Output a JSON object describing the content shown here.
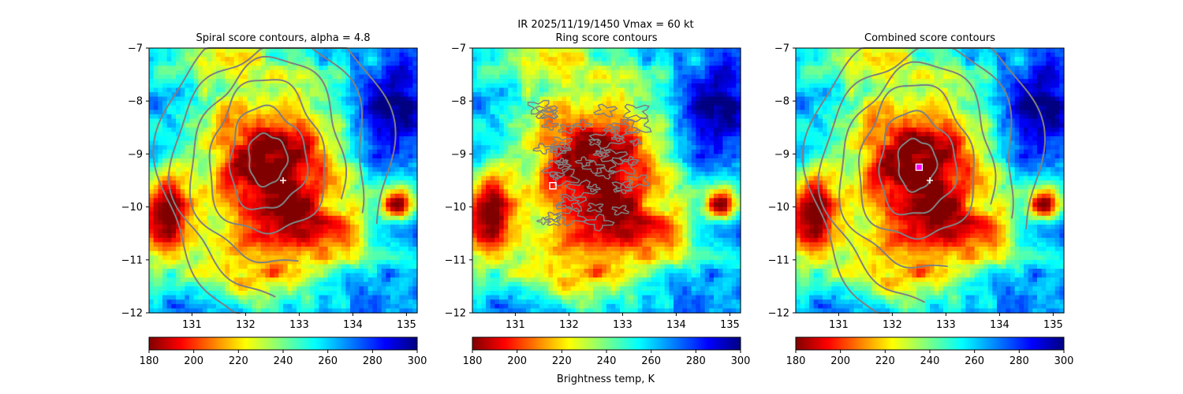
{
  "figure": {
    "suptitle_line1": "IR  2025/11/19/1450    Vmax = 60 kt",
    "colorbar_label": "Brightness temp, K"
  },
  "chart_data": [
    {
      "type": "heatmap",
      "title": "Spiral score contours, alpha =  4.8",
      "xlim": [
        130.2,
        135.2
      ],
      "ylim": [
        -12,
        -7
      ],
      "xticks": [
        131,
        132,
        133,
        134,
        135
      ],
      "yticks": [
        -7,
        -8,
        -9,
        -10,
        -11,
        -12
      ],
      "xtick_labels": [
        "131",
        "132",
        "133",
        "134",
        "135"
      ],
      "ytick_labels": [
        "−7",
        "−8",
        "−9",
        "−10",
        "−11",
        "−12"
      ],
      "color_range": [
        180,
        300
      ],
      "colormap": "jet_r",
      "colorbar_ticks": [
        "180",
        "200",
        "220",
        "240",
        "260",
        "280",
        "300"
      ],
      "contour_style": "spiral",
      "contour_center": [
        132.4,
        -9.1
      ],
      "contour_count": 6,
      "markers": [
        {
          "kind": "plus",
          "x": 132.7,
          "y": -9.5,
          "label": "best track center"
        }
      ]
    },
    {
      "type": "heatmap",
      "title": "Ring score contours",
      "xlim": [
        130.2,
        135.2
      ],
      "ylim": [
        -12,
        -7
      ],
      "xticks": [
        131,
        132,
        133,
        134,
        135
      ],
      "yticks": [
        -7,
        -8,
        -9,
        -10,
        -11,
        -12
      ],
      "xtick_labels": [
        "131",
        "132",
        "133",
        "134",
        "135"
      ],
      "ytick_labels": [
        "−7",
        "−8",
        "−9",
        "−10",
        "−11",
        "−12"
      ],
      "color_range": [
        180,
        300
      ],
      "colormap": "jet_r",
      "colorbar_ticks": [
        "180",
        "200",
        "220",
        "240",
        "260",
        "280",
        "300"
      ],
      "contour_style": "ring",
      "markers": [
        {
          "kind": "square",
          "x": 131.7,
          "y": -9.6,
          "label": "ring score maximum"
        }
      ]
    },
    {
      "type": "heatmap",
      "title": "Combined score contours",
      "xlim": [
        130.2,
        135.2
      ],
      "ylim": [
        -12,
        -7
      ],
      "xticks": [
        131,
        132,
        133,
        134,
        135
      ],
      "yticks": [
        -7,
        -8,
        -9,
        -10,
        -11,
        -12
      ],
      "xtick_labels": [
        "131",
        "132",
        "133",
        "134",
        "135"
      ],
      "ytick_labels": [
        "−7",
        "−8",
        "−9",
        "−10",
        "−11",
        "−12"
      ],
      "color_range": [
        180,
        300
      ],
      "colormap": "jet_r",
      "colorbar_ticks": [
        "180",
        "200",
        "220",
        "240",
        "260",
        "280",
        "300"
      ],
      "contour_style": "spiral",
      "contour_center": [
        132.45,
        -9.2
      ],
      "contour_count": 6,
      "markers": [
        {
          "kind": "plus",
          "x": 132.7,
          "y": -9.5,
          "label": "best track center"
        },
        {
          "kind": "square-magenta",
          "x": 132.5,
          "y": -9.25,
          "label": "combined score maximum"
        }
      ]
    }
  ]
}
